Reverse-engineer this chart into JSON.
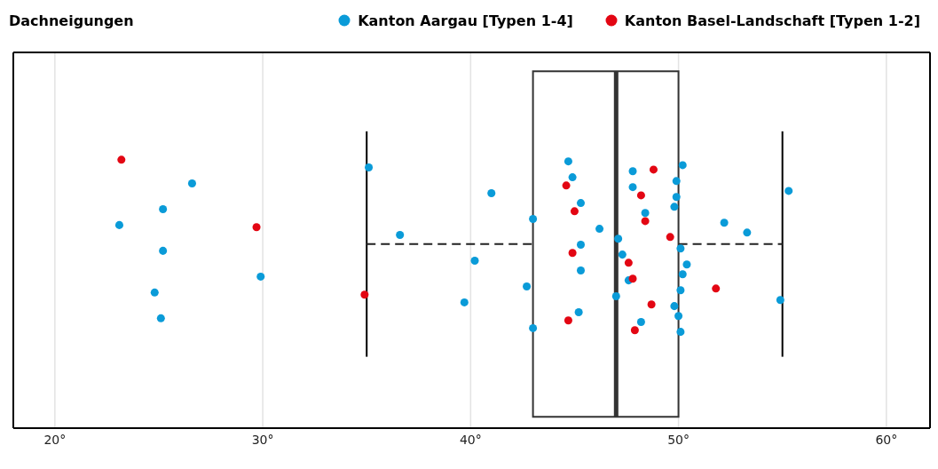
{
  "chart_data": {
    "type": "box",
    "title": "Dachneigungen",
    "orientation": "horizontal",
    "categories": [
      null
    ],
    "boxes": [
      {
        "low": 35,
        "q1": 43,
        "median": 47,
        "q3": 50,
        "high": 55
      }
    ],
    "xlim": [
      18,
      62.1
    ],
    "xticks": [
      {
        "value": 20,
        "label": "20°"
      },
      {
        "value": 30,
        "label": "30°"
      },
      {
        "value": 40,
        "label": "40°"
      },
      {
        "value": 50,
        "label": "50°"
      },
      {
        "value": 60,
        "label": "60°"
      }
    ],
    "grid": "x",
    "legend": "top right",
    "marker": "circle",
    "tick_labels": "x",
    "series": [
      {
        "name": "Kanton Aargau [Typen 1-4]",
        "type": "scatter",
        "color": "#0a9bd8",
        "x": [
          null,
          null,
          null,
          null,
          null,
          null,
          null,
          null,
          null,
          null,
          null,
          null,
          null,
          null,
          null,
          null,
          null,
          null,
          null,
          null,
          null,
          null,
          null,
          null,
          null,
          null,
          null,
          null,
          null,
          null,
          null,
          null,
          null,
          null,
          null,
          null,
          null,
          null,
          null,
          null,
          null,
          null,
          null,
          null,
          null
        ],
        "values": [
          23.1,
          24.8,
          26.6,
          25.2,
          25.1,
          25.2,
          29.9,
          35.1,
          36.6,
          39.7,
          41.0,
          40.2,
          43.0,
          43.0,
          42.7,
          44.9,
          45.3,
          45.2,
          45.3,
          45.3,
          44.7,
          46.2,
          47.0,
          47.8,
          47.3,
          48.2,
          48.4,
          47.6,
          47.8,
          47.1,
          49.8,
          49.9,
          50.4,
          50.1,
          52.2,
          50.1,
          49.9,
          50.1,
          50.0,
          49.8,
          50.2,
          50.2,
          53.3,
          54.9,
          55.3
        ]
      },
      {
        "name": "Kanton Basel-Landschaft [Typen 1-2]",
        "type": "scatter",
        "color": "#e30613",
        "x": [
          null,
          null,
          null,
          null,
          null,
          null,
          null,
          null,
          null,
          null,
          null,
          null,
          null,
          null,
          null,
          null
        ],
        "values": [
          23.2,
          29.7,
          34.9,
          44.6,
          44.9,
          44.7,
          45.0,
          47.8,
          48.8,
          49.6,
          48.7,
          48.2,
          47.6,
          47.9,
          48.4,
          51.8
        ]
      }
    ]
  }
}
